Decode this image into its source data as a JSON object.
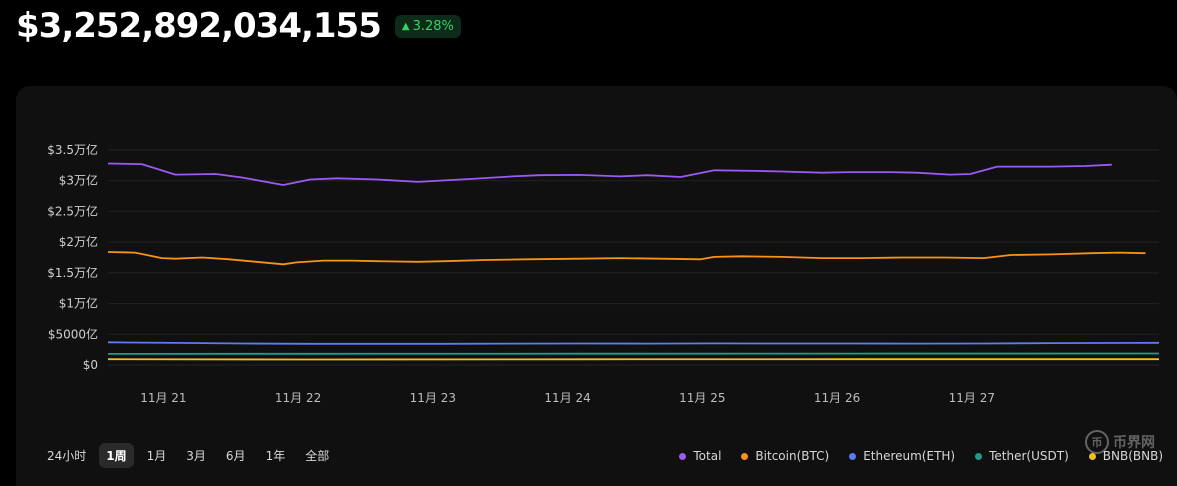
{
  "header": {
    "total_value": "$3,252,892,034,155",
    "change": "3.28%",
    "change_arrow": "▲"
  },
  "ranges": {
    "items": [
      "24小时",
      "1周",
      "1月",
      "3月",
      "6月",
      "1年",
      "全部"
    ],
    "active": "1周"
  },
  "watermark": {
    "glyph": "币",
    "text": "币界网"
  },
  "colors": {
    "Total": "#9b59f5",
    "BTC": "#f7931a",
    "ETH": "#5b7cf2",
    "USDT": "#1e9c8e",
    "BNB": "#f0c020",
    "up": "#38d16a"
  },
  "chart_data": {
    "type": "line",
    "y_ticks": [
      {
        "value": 0,
        "label": "$0"
      },
      {
        "value": 5000,
        "label": "$5000亿"
      },
      {
        "value": 10000,
        "label": "$1万亿"
      },
      {
        "value": 15000,
        "label": "$1.5万亿"
      },
      {
        "value": 20000,
        "label": "$2万亿"
      },
      {
        "value": 25000,
        "label": "$2.5万亿"
      },
      {
        "value": 30000,
        "label": "$3万亿"
      },
      {
        "value": 35000,
        "label": "$3.5万亿"
      }
    ],
    "x_ticks": [
      {
        "value": 1,
        "label": "11月 21"
      },
      {
        "value": 2,
        "label": "11月 22"
      },
      {
        "value": 3,
        "label": "11月 23"
      },
      {
        "value": 4,
        "label": "11月 24"
      },
      {
        "value": 5,
        "label": "11月 25"
      },
      {
        "value": 6,
        "label": "11月 26"
      },
      {
        "value": 7,
        "label": "11月 27"
      }
    ],
    "xlim": [
      0.5,
      8.3
    ],
    "ylim": [
      0,
      35000
    ],
    "unit": "亿 USD",
    "series": [
      {
        "name": "Total",
        "color_key": "Total",
        "x": [
          0.5,
          0.75,
          1.0,
          1.3,
          1.5,
          1.8,
          2.0,
          2.2,
          2.5,
          2.8,
          3.2,
          3.5,
          3.7,
          4.0,
          4.3,
          4.5,
          4.75,
          5.0,
          5.3,
          5.5,
          5.8,
          6.0,
          6.3,
          6.5,
          6.75,
          6.9,
          7.1,
          7.25,
          7.5,
          7.75,
          7.95
        ],
        "y": [
          32800,
          32700,
          31000,
          31100,
          30500,
          29300,
          30200,
          30400,
          30200,
          29800,
          30300,
          30700,
          30900,
          30950,
          30700,
          30900,
          30600,
          31700,
          31600,
          31500,
          31300,
          31400,
          31400,
          31300,
          31000,
          31100,
          32300,
          32300,
          32300,
          32400,
          32600
        ]
      },
      {
        "name": "Bitcoin(BTC)",
        "color_key": "BTC",
        "x": [
          0.5,
          0.7,
          0.9,
          1.0,
          1.2,
          1.4,
          1.6,
          1.8,
          1.9,
          2.1,
          2.3,
          2.5,
          2.8,
          3.0,
          3.3,
          3.6,
          4.0,
          4.3,
          4.6,
          4.9,
          5.0,
          5.2,
          5.5,
          5.8,
          6.1,
          6.4,
          6.7,
          7.0,
          7.2,
          7.5,
          7.8,
          8.0,
          8.2
        ],
        "y": [
          18400,
          18300,
          17400,
          17300,
          17500,
          17200,
          16800,
          16400,
          16700,
          17000,
          17000,
          16900,
          16800,
          16900,
          17100,
          17200,
          17300,
          17400,
          17300,
          17200,
          17600,
          17700,
          17600,
          17400,
          17400,
          17500,
          17500,
          17400,
          17900,
          18000,
          18200,
          18300,
          18200
        ]
      },
      {
        "name": "Ethereum(ETH)",
        "color_key": "ETH",
        "x": [
          0.5,
          1.0,
          1.5,
          2.0,
          2.5,
          3.0,
          3.5,
          4.0,
          4.5,
          5.0,
          5.5,
          6.0,
          6.5,
          7.0,
          7.5,
          8.3
        ],
        "y": [
          3700,
          3600,
          3500,
          3450,
          3450,
          3450,
          3480,
          3500,
          3480,
          3520,
          3500,
          3500,
          3480,
          3500,
          3560,
          3620
        ]
      },
      {
        "name": "Tether(USDT)",
        "color_key": "USDT",
        "x": [
          0.5,
          2.0,
          4.0,
          6.0,
          8.3
        ],
        "y": [
          1800,
          1820,
          1840,
          1860,
          1880
        ]
      },
      {
        "name": "BNB(BNB)",
        "color_key": "BNB",
        "x": [
          0.5,
          2.0,
          4.0,
          6.0,
          8.3
        ],
        "y": [
          950,
          900,
          920,
          940,
          950
        ]
      }
    ]
  }
}
